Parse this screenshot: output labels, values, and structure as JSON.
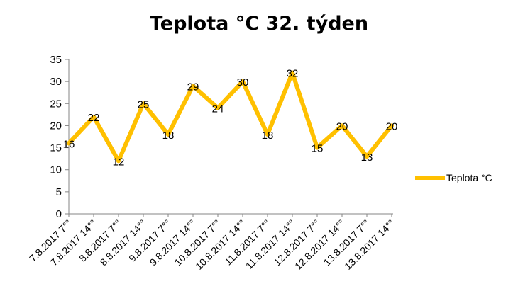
{
  "chart_data": {
    "type": "line",
    "title": "Teplota °C 32. týden",
    "categories": [
      "7.8.2017 7°°",
      "7.8.2017 14°°",
      "8.8.2017 7°°",
      "8.8.2017 14°°",
      "9.8.2017 7°°",
      "9.8.2017 14°°",
      "10.8.2017 7°°",
      "10.8.2017 14°°",
      "11.8.2017 7°°",
      "11.8.2017 14°°",
      "12.8.2017 7°°",
      "12.8.2017 14°°",
      "13.8.2017 7°°",
      "13.8.2017 14°°"
    ],
    "series": [
      {
        "name": "Teplota °C",
        "values": [
          16,
          22,
          12,
          25,
          18,
          29,
          24,
          30,
          18,
          32,
          15,
          20,
          13,
          20
        ],
        "color": "#FFC000"
      }
    ],
    "yticks": [
      0,
      5,
      10,
      15,
      20,
      25,
      30,
      35
    ],
    "ylim": [
      0,
      35
    ],
    "grid": false,
    "legend": "right",
    "data_labels": true
  }
}
